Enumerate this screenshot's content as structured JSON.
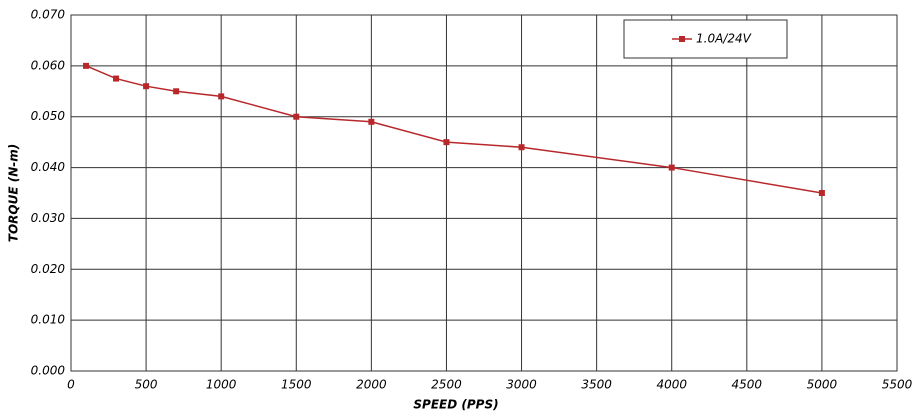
{
  "chart_data": {
    "type": "line",
    "x_label": "SPEED (PPS)",
    "y_label": "TORQUE (N-m)",
    "series": [
      {
        "name": "1.0A/24V",
        "color": "#b8282b",
        "x": [
          100,
          300,
          500,
          700,
          1000,
          1500,
          2000,
          2500,
          3000,
          4000,
          5000
        ],
        "values": [
          0.06,
          0.0575,
          0.056,
          0.055,
          0.054,
          0.05,
          0.049,
          0.045,
          0.044,
          0.04,
          0.035
        ]
      }
    ],
    "xlim": [
      0,
      5500
    ],
    "xticks": [
      0,
      500,
      1000,
      1500,
      2000,
      2500,
      3000,
      3500,
      4000,
      4500,
      5000,
      5500
    ],
    "ylim": [
      0,
      0.07
    ],
    "yticks": [
      {
        "value": 0,
        "label": "0.000"
      },
      {
        "value": 0.01,
        "label": "0.010"
      },
      {
        "value": 0.02,
        "label": "0.020"
      },
      {
        "value": 0.03,
        "label": "0.030"
      },
      {
        "value": 0.04,
        "label": "0.040"
      },
      {
        "value": 0.05,
        "label": "0.050"
      },
      {
        "value": 0.06,
        "label": "0.060"
      },
      {
        "value": 0.07,
        "label": "0.070"
      }
    ],
    "grid": true,
    "legend": "top-right"
  }
}
